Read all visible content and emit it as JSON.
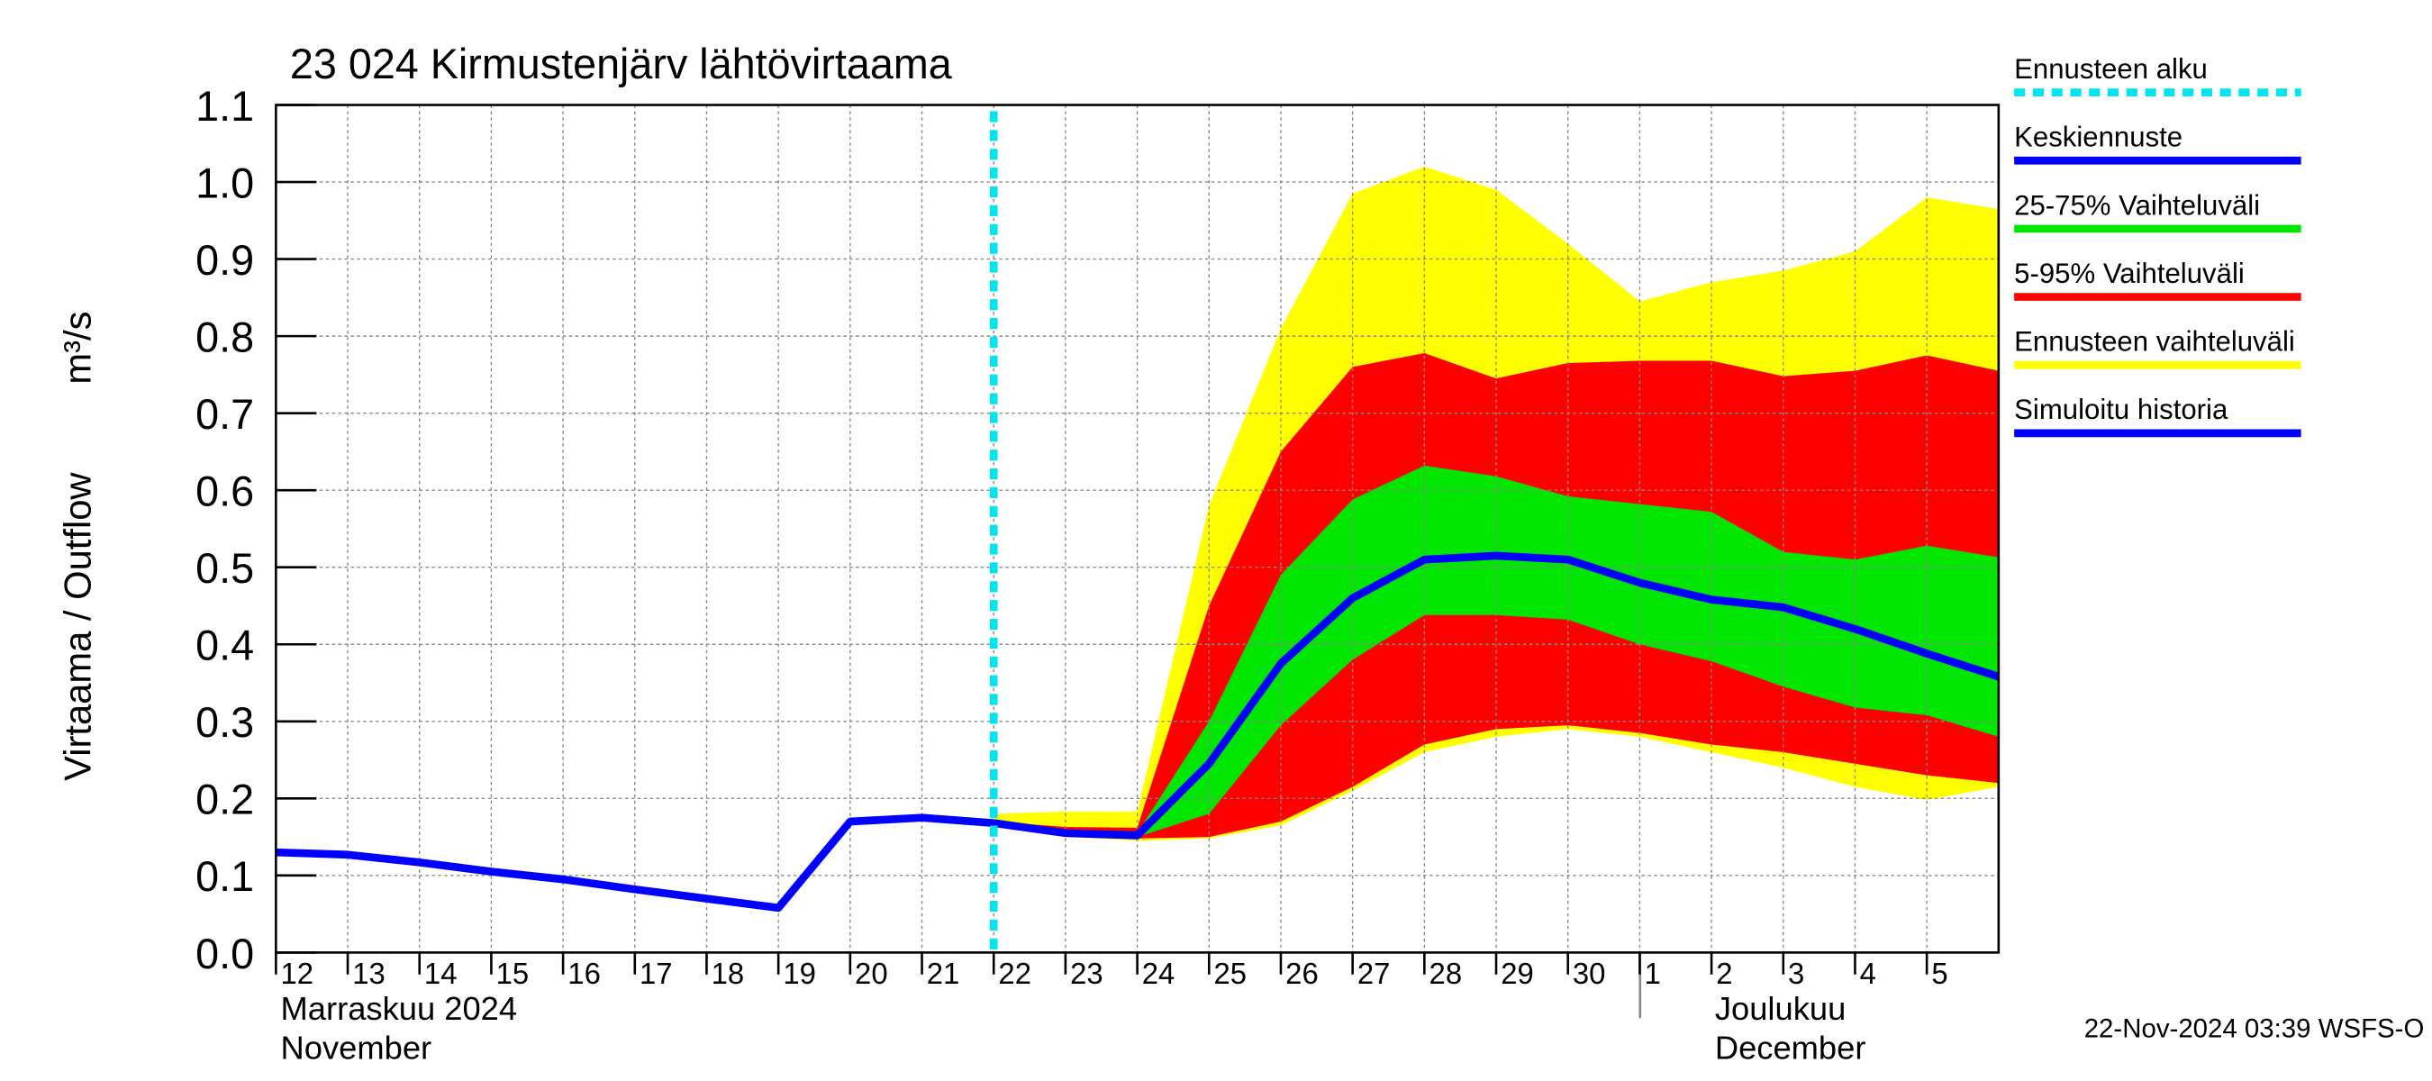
{
  "chart_data": {
    "type": "line",
    "title": "23 024 Kirmustenjärv lähtövirtaama",
    "y_label": "Virtaama / Outflow",
    "y_unit": "m³/s",
    "month_labels": [
      "Marraskuu 2024",
      "November",
      "Joulukuu",
      "December"
    ],
    "footer": "22-Nov-2024 03:39 WSFS-O",
    "grid": true,
    "x": [
      "2024-11-12",
      "2024-11-13",
      "2024-11-14",
      "2024-11-15",
      "2024-11-16",
      "2024-11-17",
      "2024-11-18",
      "2024-11-19",
      "2024-11-20",
      "2024-11-21",
      "2024-11-22",
      "2024-11-23",
      "2024-11-24",
      "2024-11-25",
      "2024-11-26",
      "2024-11-27",
      "2024-11-28",
      "2024-11-29",
      "2024-11-30",
      "2024-12-01",
      "2024-12-02",
      "2024-12-03",
      "2024-12-04",
      "2024-12-05",
      "2024-12-06"
    ],
    "xlim": [
      "2024-11-12",
      "2024-12-06"
    ],
    "xticks": [
      {
        "value": "2024-11-12",
        "label": "12"
      },
      {
        "value": "2024-11-13",
        "label": "13"
      },
      {
        "value": "2024-11-14",
        "label": "14"
      },
      {
        "value": "2024-11-15",
        "label": "15"
      },
      {
        "value": "2024-11-16",
        "label": "16"
      },
      {
        "value": "2024-11-17",
        "label": "17"
      },
      {
        "value": "2024-11-18",
        "label": "18"
      },
      {
        "value": "2024-11-19",
        "label": "19"
      },
      {
        "value": "2024-11-20",
        "label": "20"
      },
      {
        "value": "2024-11-21",
        "label": "21"
      },
      {
        "value": "2024-11-22",
        "label": "22"
      },
      {
        "value": "2024-11-23",
        "label": "23"
      },
      {
        "value": "2024-11-24",
        "label": "24"
      },
      {
        "value": "2024-11-25",
        "label": "25"
      },
      {
        "value": "2024-11-26",
        "label": "26"
      },
      {
        "value": "2024-11-27",
        "label": "27"
      },
      {
        "value": "2024-11-28",
        "label": "28"
      },
      {
        "value": "2024-11-29",
        "label": "29"
      },
      {
        "value": "2024-11-30",
        "label": "30"
      },
      {
        "value": "2024-12-01",
        "label": "1"
      },
      {
        "value": "2024-12-02",
        "label": "2"
      },
      {
        "value": "2024-12-03",
        "label": "3"
      },
      {
        "value": "2024-12-04",
        "label": "4"
      },
      {
        "value": "2024-12-05",
        "label": "5"
      }
    ],
    "ylim": [
      0,
      1.1
    ],
    "yticks": [
      {
        "value": 0,
        "label": "0.0"
      },
      0.1,
      0.2,
      0.3,
      0.4,
      0.5,
      0.6,
      0.7,
      0.8,
      0.9,
      {
        "value": 1,
        "label": "1.0"
      },
      1.1
    ],
    "vline": {
      "name": "Ennusteen alku",
      "x": "2024-11-22",
      "color": "#00e5ee"
    },
    "series": [
      {
        "name": "Keskiennuste",
        "kind": "line",
        "color": "#0000ff",
        "values": [
          null,
          null,
          null,
          null,
          null,
          null,
          null,
          null,
          null,
          null,
          0.168,
          0.155,
          0.152,
          0.245,
          0.375,
          0.46,
          0.51,
          0.515,
          0.51,
          0.48,
          0.458,
          0.448,
          0.42,
          0.388,
          0.358
        ]
      },
      {
        "name": "25-75% Vaihteluväli",
        "kind": "band",
        "color": "#00e600",
        "upper": [
          null,
          null,
          null,
          null,
          null,
          null,
          null,
          null,
          null,
          null,
          0.168,
          0.158,
          0.155,
          0.3,
          0.49,
          0.588,
          0.632,
          0.618,
          0.592,
          0.582,
          0.572,
          0.52,
          0.51,
          0.528,
          0.513
        ],
        "lower": [
          null,
          null,
          null,
          null,
          null,
          null,
          null,
          null,
          null,
          null,
          0.166,
          0.155,
          0.15,
          0.18,
          0.295,
          0.38,
          0.438,
          0.438,
          0.432,
          0.4,
          0.378,
          0.345,
          0.318,
          0.308,
          0.28
        ]
      },
      {
        "name": "5-95% Vaihteluväli",
        "kind": "band",
        "color": "#ff0000",
        "upper": [
          null,
          null,
          null,
          null,
          null,
          null,
          null,
          null,
          null,
          null,
          0.17,
          0.163,
          0.162,
          0.45,
          0.65,
          0.76,
          0.778,
          0.745,
          0.765,
          0.768,
          0.768,
          0.748,
          0.755,
          0.775,
          0.755
        ],
        "lower": [
          null,
          null,
          null,
          null,
          null,
          null,
          null,
          null,
          null,
          null,
          0.168,
          0.153,
          0.148,
          0.15,
          0.17,
          0.215,
          0.27,
          0.29,
          0.295,
          0.285,
          0.27,
          0.26,
          0.245,
          0.23,
          0.22
        ]
      },
      {
        "name": "Ennusteen vaihteluväli",
        "kind": "band",
        "color": "#ffff00",
        "upper": [
          null,
          null,
          null,
          null,
          null,
          null,
          null,
          null,
          null,
          null,
          0.18,
          0.183,
          0.183,
          0.58,
          0.81,
          0.985,
          1.02,
          0.99,
          0.92,
          0.845,
          0.87,
          0.885,
          0.91,
          0.98,
          0.965
        ],
        "lower": [
          null,
          null,
          null,
          null,
          null,
          null,
          null,
          null,
          null,
          null,
          0.168,
          0.15,
          0.145,
          0.148,
          0.165,
          0.21,
          0.26,
          0.28,
          0.29,
          0.28,
          0.26,
          0.24,
          0.215,
          0.198,
          0.215
        ]
      },
      {
        "name": "Simuloitu historia",
        "kind": "line",
        "color": "#0000ff",
        "values": [
          0.13,
          0.127,
          0.117,
          0.105,
          0.095,
          0.082,
          0.07,
          0.058,
          0.17,
          0.175,
          0.168,
          null,
          null,
          null,
          null,
          null,
          null,
          null,
          null,
          null,
          null,
          null,
          null,
          null,
          null
        ]
      }
    ]
  }
}
